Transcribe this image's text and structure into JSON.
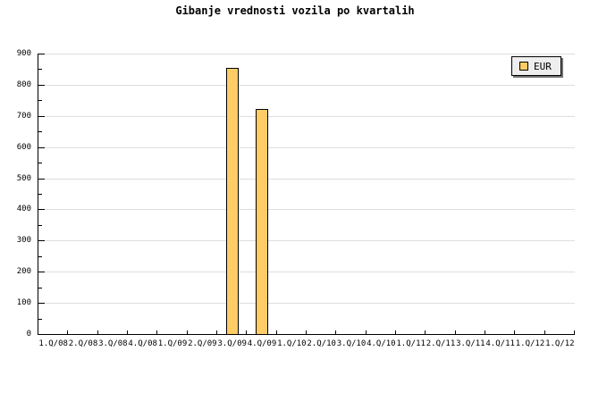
{
  "colors": {
    "background": "#FFFFFF",
    "bar_fill": "#FFCC66",
    "bar_border": "#000000",
    "axis": "#000000",
    "gridline": "#DEDEDE",
    "legend_bg": "#EEEEEE"
  },
  "legend": {
    "label": "EUR"
  },
  "chart_data": {
    "type": "bar",
    "title": "Gibanje vrednosti vozila po kvartalih",
    "categories": [
      "1.Q/08",
      "2.Q/08",
      "3.Q/08",
      "4.Q/08",
      "1.Q/09",
      "2.Q/09",
      "3.Q/09",
      "4.Q/09",
      "1.Q/10",
      "2.Q/10",
      "3.Q/10",
      "4.Q/10",
      "1.Q/11",
      "2.Q/11",
      "3.Q/11",
      "4.Q/11",
      "1.Q/12",
      "1.Q/12"
    ],
    "series": [
      {
        "name": "EUR",
        "color": "#FFCC66",
        "values": [
          null,
          null,
          null,
          null,
          null,
          null,
          855,
          723,
          null,
          null,
          null,
          null,
          null,
          null,
          null,
          null,
          null,
          null
        ]
      }
    ],
    "xlabel": "",
    "ylabel": "",
    "ylim": [
      0,
      900
    ],
    "y_major_step": 100,
    "y_minor_step": 50,
    "y_tick_labels": [
      "0",
      "100",
      "200",
      "300",
      "400",
      "500",
      "600",
      "700",
      "800",
      "900"
    ],
    "grid": "horizontal",
    "legend_position": "top-right"
  }
}
